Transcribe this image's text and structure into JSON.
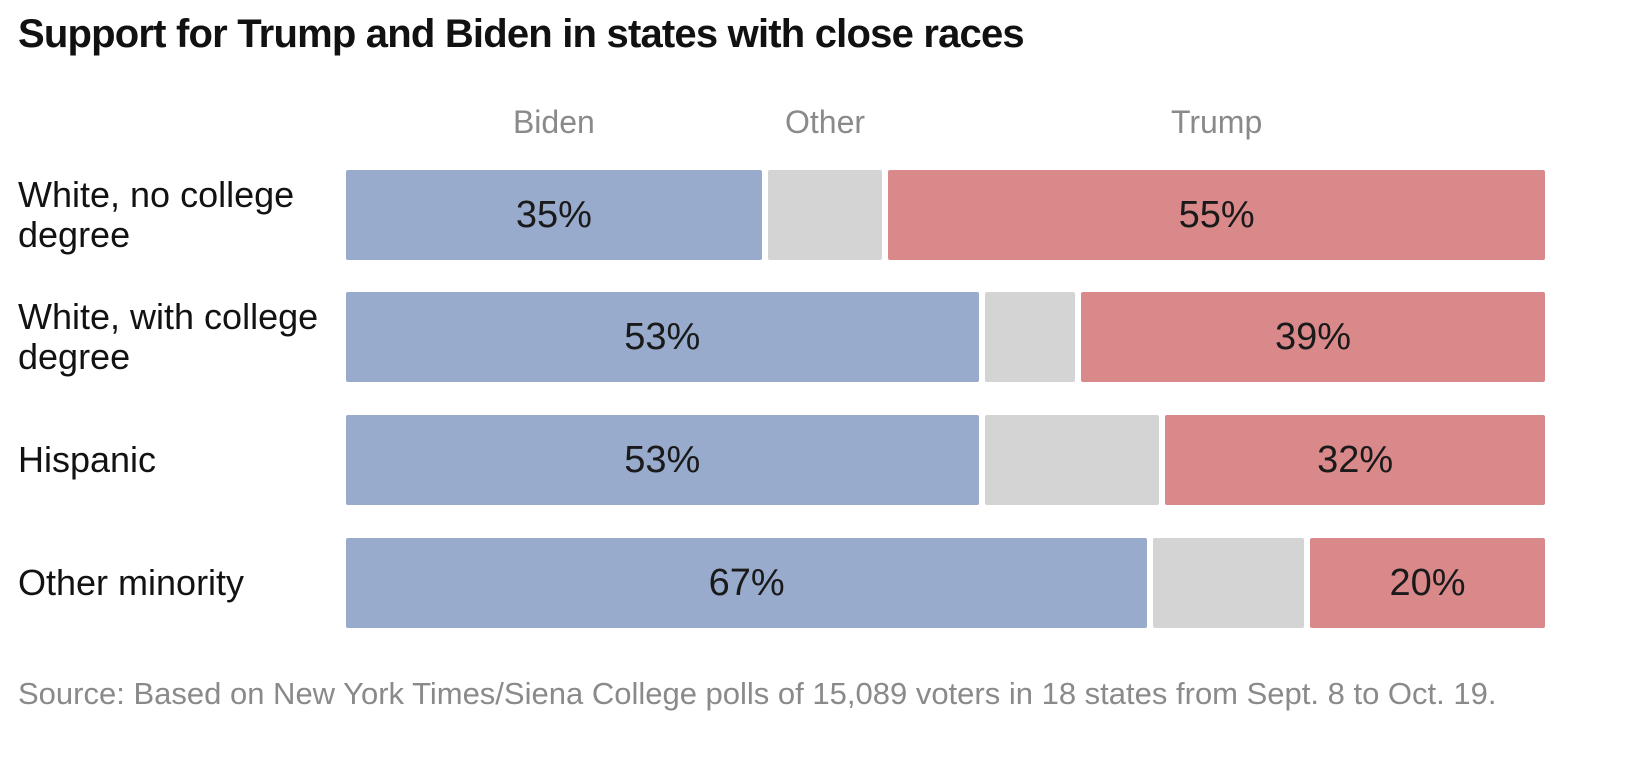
{
  "chart_data": {
    "type": "bar",
    "orientation": "horizontal",
    "stacked": true,
    "title": "Support for Trump and Biden in states with close races",
    "series": [
      {
        "name": "Biden",
        "color": "#98abcc"
      },
      {
        "name": "Other",
        "color": "#d4d4d4"
      },
      {
        "name": "Trump",
        "color": "#da898b"
      }
    ],
    "rows": [
      {
        "label": "White, no college degree",
        "biden": 35,
        "other": 10,
        "trump": 55,
        "biden_label": "35%",
        "trump_label": "55%"
      },
      {
        "label": "White, with college degree",
        "biden": 53,
        "other": 8,
        "trump": 39,
        "biden_label": "53%",
        "trump_label": "39%"
      },
      {
        "label": "Hispanic",
        "biden": 53,
        "other": 15,
        "trump": 32,
        "biden_label": "53%",
        "trump_label": "32%"
      },
      {
        "label": "Other minority",
        "biden": 67,
        "other": 13,
        "trump": 20,
        "biden_label": "67%",
        "trump_label": "20%"
      }
    ],
    "xlim": [
      0,
      100
    ],
    "grid": false,
    "legend": "top",
    "source": "Source: Based on New York Times/Siena College polls of 15,089 voters in 18 states from Sept. 8 to Oct. 19."
  }
}
